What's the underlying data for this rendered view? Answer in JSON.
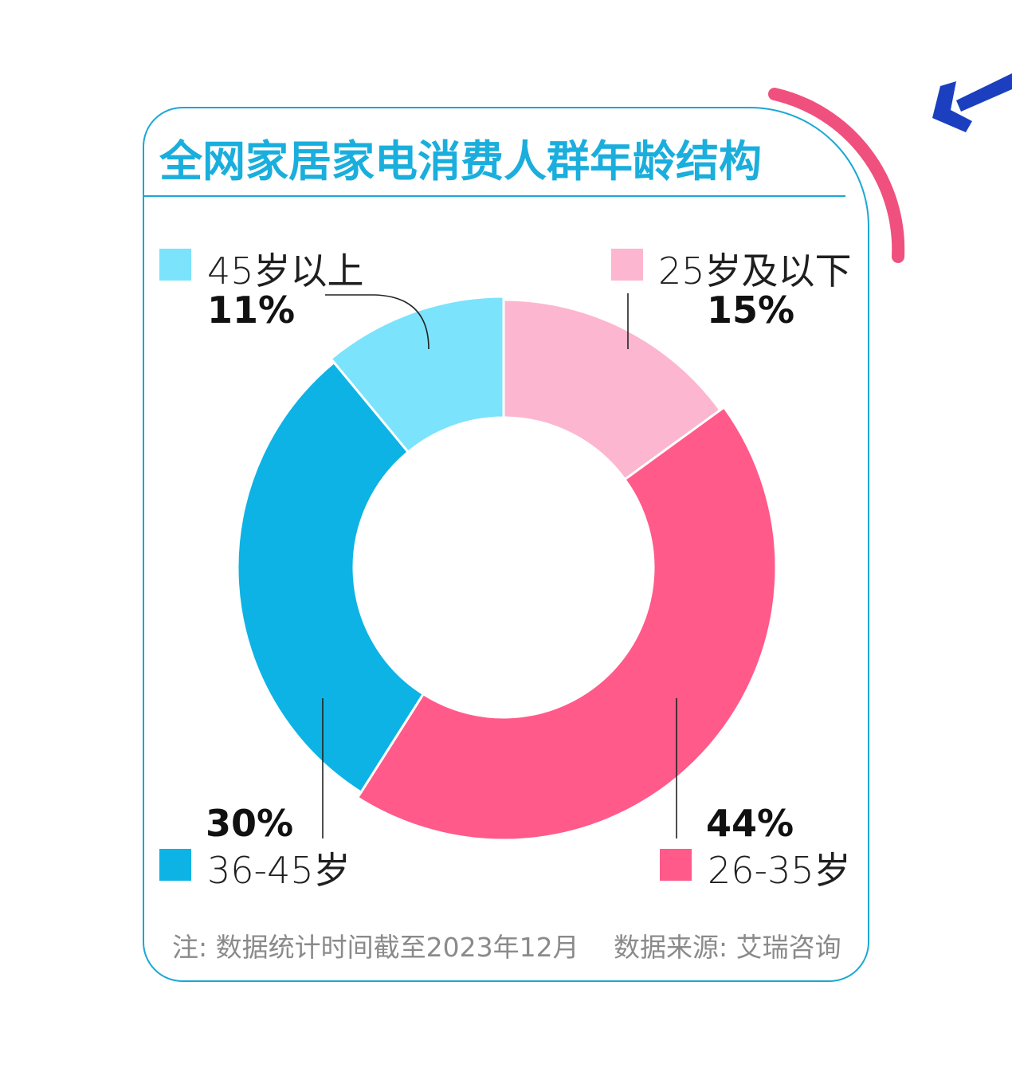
{
  "title": "全网家居家电消费人群年龄结构",
  "footer": {
    "note": "注: 数据统计时间截至2023年12月",
    "source": "数据来源: 艾瑞咨询"
  },
  "colors": {
    "accent_blue": "#1aaedd",
    "deco_pink": "#f0507e",
    "deco_navy": "#1c3fbf"
  },
  "chart_data": {
    "type": "pie",
    "style": "donut",
    "title": "全网家居家电消费人群年龄结构",
    "unit": "%",
    "slices": [
      {
        "label": "25岁及以下",
        "value": 15,
        "display": "15%",
        "color": "#fcb6d0"
      },
      {
        "label": "26-35岁",
        "value": 44,
        "display": "44%",
        "color": "#ff5a8a"
      },
      {
        "label": "36-45岁",
        "value": 30,
        "display": "30%",
        "color": "#0db3e4"
      },
      {
        "label": "45岁以上",
        "value": 11,
        "display": "11%",
        "color": "#7be3fb"
      }
    ]
  }
}
